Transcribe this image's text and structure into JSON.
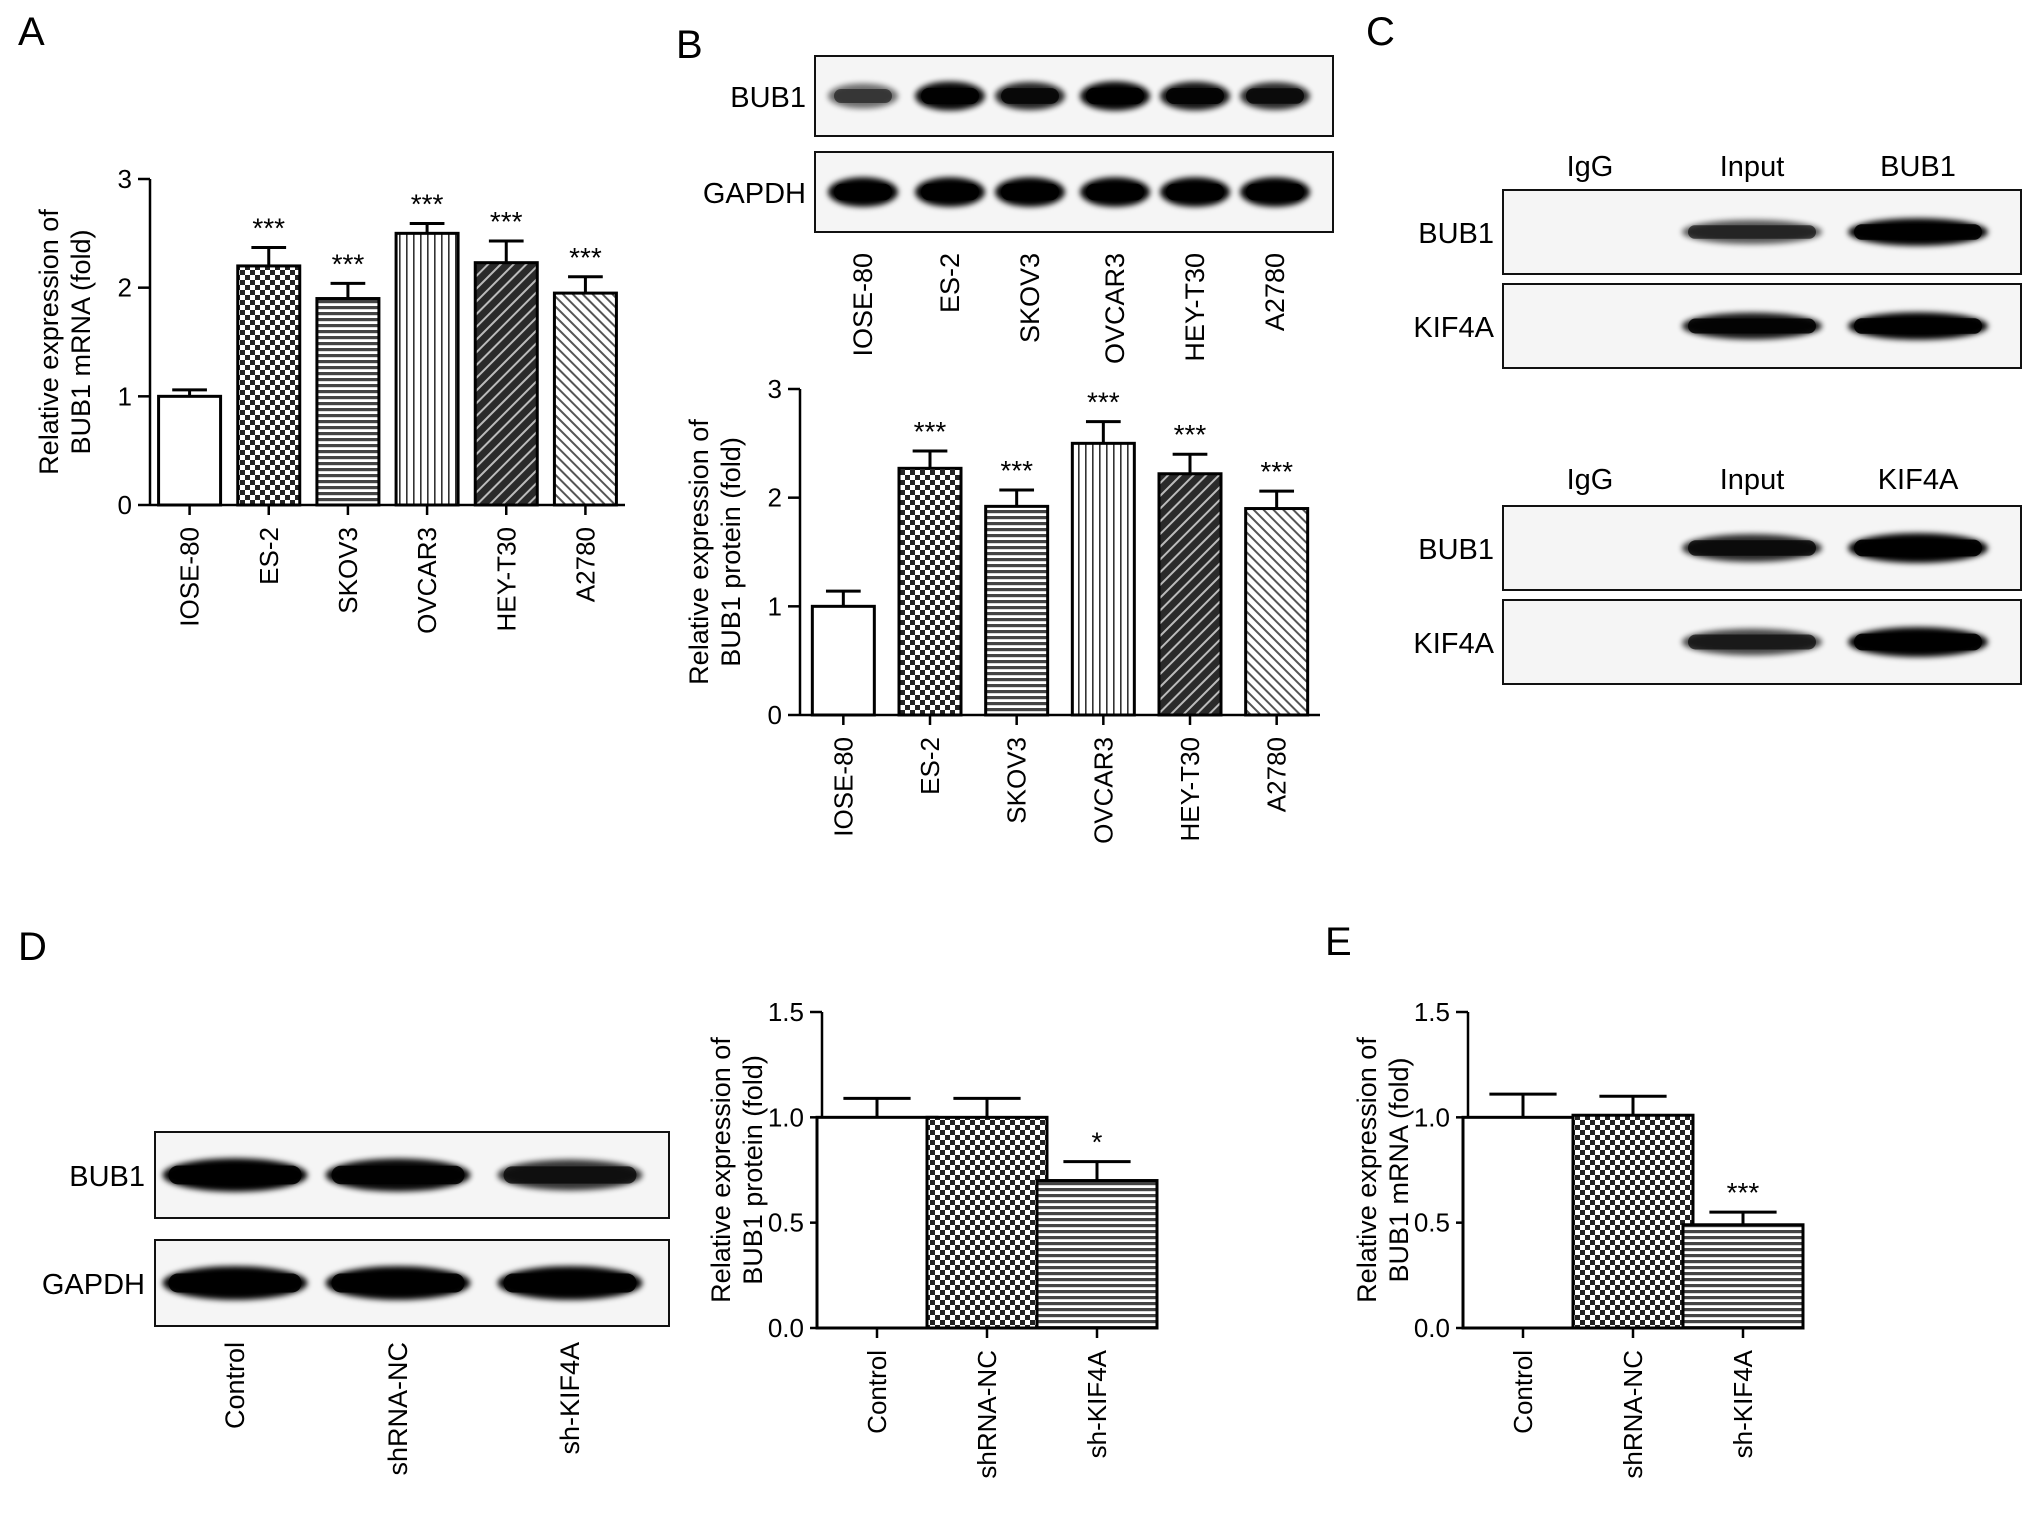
{
  "chart_data": [
    {
      "panel": "A",
      "type": "bar",
      "ylabel": [
        "Relative expression of",
        "BUB1 mRNA (fold)"
      ],
      "ylim": [
        0,
        3
      ],
      "yticks": [
        0,
        1,
        2,
        3
      ],
      "categories": [
        "IOSE-80",
        "ES-2",
        "SKOV3",
        "OVCAR3",
        "HEY-T30",
        "A2780"
      ],
      "values": [
        1.0,
        2.2,
        1.9,
        2.5,
        2.23,
        1.95
      ],
      "errors": [
        0.06,
        0.17,
        0.14,
        0.09,
        0.2,
        0.15
      ],
      "significance": [
        "",
        "***",
        "***",
        "***",
        "***",
        "***"
      ],
      "patterns": [
        "white",
        "checker",
        "hstripe",
        "vstripe",
        "dark-diag",
        "light-diag"
      ]
    },
    {
      "panel": "B",
      "type": "bar",
      "ylabel": [
        "Relative expression of",
        "BUB1 protein (fold)"
      ],
      "ylim": [
        0,
        3
      ],
      "yticks": [
        0,
        1,
        2,
        3
      ],
      "categories": [
        "IOSE-80",
        "ES-2",
        "SKOV3",
        "OVCAR3",
        "HEY-T30",
        "A2780"
      ],
      "values": [
        1.0,
        2.27,
        1.92,
        2.5,
        2.22,
        1.9
      ],
      "errors": [
        0.14,
        0.16,
        0.15,
        0.2,
        0.18,
        0.16
      ],
      "significance": [
        "",
        "***",
        "***",
        "***",
        "***",
        "***"
      ],
      "patterns": [
        "white",
        "checker",
        "hstripe",
        "vstripe",
        "dark-diag",
        "light-diag"
      ]
    },
    {
      "panel": "D",
      "type": "bar",
      "ylabel": [
        "Relative expression of",
        "BUB1 protein (fold)"
      ],
      "ylim": [
        0,
        1.5
      ],
      "yticks": [
        "0.0",
        "0.5",
        "1.0",
        "1.5"
      ],
      "categories": [
        "Control",
        "shRNA-NC",
        "sh-KIF4A"
      ],
      "values": [
        1.0,
        1.0,
        0.7
      ],
      "errors": [
        0.09,
        0.09,
        0.09
      ],
      "significance": [
        "",
        "",
        "*"
      ],
      "patterns": [
        "white",
        "checker",
        "hstripe"
      ]
    },
    {
      "panel": "E",
      "type": "bar",
      "ylabel": [
        "Relative expression of",
        "BUB1 mRNA (fold)"
      ],
      "ylim": [
        0,
        1.5
      ],
      "yticks": [
        "0.0",
        "0.5",
        "1.0",
        "1.5"
      ],
      "categories": [
        "Control",
        "shRNA-NC",
        "sh-KIF4A"
      ],
      "values": [
        1.0,
        1.01,
        0.49
      ],
      "errors": [
        0.11,
        0.09,
        0.06
      ],
      "significance": [
        "",
        "",
        "***"
      ],
      "patterns": [
        "white",
        "checker",
        "hstripe"
      ]
    }
  ],
  "panel_letters": [
    "A",
    "B",
    "C",
    "D",
    "E"
  ],
  "blots": {
    "B": {
      "rows": [
        {
          "label": "BUB1",
          "intensities": [
            0.45,
            0.9,
            0.78,
            0.92,
            0.85,
            0.75
          ]
        },
        {
          "label": "GAPDH",
          "intensities": [
            0.95,
            0.95,
            0.95,
            0.95,
            0.95,
            0.95
          ]
        }
      ],
      "lanes": [
        "IOSE-80",
        "ES-2",
        "SKOV3",
        "OVCAR3",
        "HEY-T30",
        "A2780"
      ]
    },
    "C_top": {
      "headers": [
        "IgG",
        "Input",
        "BUB1"
      ],
      "rows": [
        {
          "label": "BUB1",
          "intensities": [
            0.0,
            0.55,
            0.95
          ]
        },
        {
          "label": "KIF4A",
          "intensities": [
            0.0,
            0.85,
            0.95
          ]
        }
      ]
    },
    "C_bottom": {
      "headers": [
        "IgG",
        "Input",
        "KIF4A"
      ],
      "rows": [
        {
          "label": "BUB1",
          "intensities": [
            0.0,
            0.75,
            0.98
          ]
        },
        {
          "label": "KIF4A",
          "intensities": [
            0.0,
            0.62,
            0.98
          ]
        }
      ]
    },
    "D": {
      "rows": [
        {
          "label": "BUB1",
          "intensities": [
            0.95,
            0.9,
            0.7
          ]
        },
        {
          "label": "GAPDH",
          "intensities": [
            0.98,
            0.98,
            0.98
          ]
        }
      ],
      "lanes": [
        "Control",
        "shRNA-NC",
        "sh-KIF4A"
      ]
    }
  }
}
